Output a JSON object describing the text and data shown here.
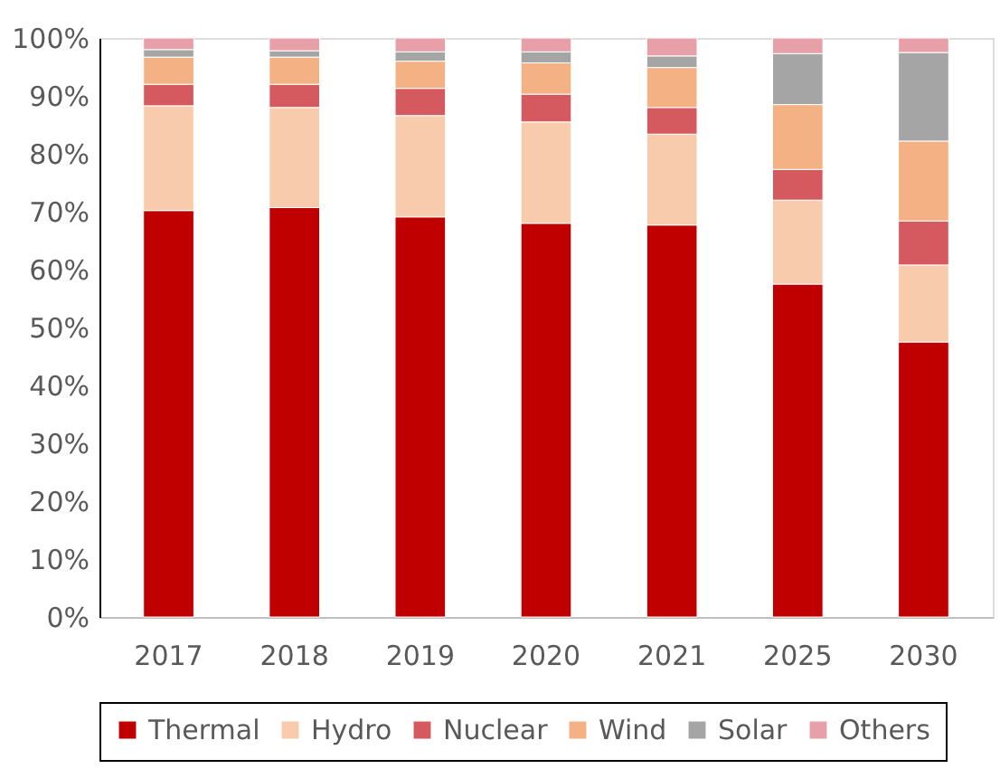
{
  "chart_data": {
    "type": "bar",
    "stacked": true,
    "categories": [
      "2017",
      "2018",
      "2019",
      "2020",
      "2021",
      "2025",
      "2030"
    ],
    "series": [
      {
        "name": "Thermal",
        "color": "#c00000",
        "values": [
          70.2,
          70.7,
          69.1,
          68.0,
          67.7,
          57.5,
          47.5
        ]
      },
      {
        "name": "Hydro",
        "color": "#f8cbad",
        "values": [
          18.1,
          17.3,
          17.5,
          17.5,
          15.7,
          14.5,
          13.3
        ]
      },
      {
        "name": "Nuclear",
        "color": "#d45a5f",
        "values": [
          3.7,
          4.0,
          4.7,
          4.8,
          4.6,
          5.3,
          7.6
        ]
      },
      {
        "name": "Wind",
        "color": "#f4b183",
        "values": [
          4.7,
          4.7,
          4.7,
          5.4,
          6.9,
          11.2,
          13.8
        ]
      },
      {
        "name": "Solar",
        "color": "#a5a5a5",
        "values": [
          1.3,
          1.1,
          1.6,
          1.9,
          2.0,
          8.8,
          15.3
        ]
      },
      {
        "name": "Others",
        "color": "#e8a0a8",
        "values": [
          2.0,
          2.2,
          2.4,
          2.4,
          3.1,
          2.7,
          2.5
        ]
      }
    ],
    "ylim": [
      0,
      100
    ],
    "yticks": [
      {
        "value": 0,
        "label": "0%"
      },
      {
        "value": 10,
        "label": "10%"
      },
      {
        "value": 20,
        "label": "20%"
      },
      {
        "value": 30,
        "label": "30%"
      },
      {
        "value": 40,
        "label": "40%"
      },
      {
        "value": 50,
        "label": "50%"
      },
      {
        "value": 60,
        "label": "60%"
      },
      {
        "value": 70,
        "label": "70%"
      },
      {
        "value": 80,
        "label": "80%"
      },
      {
        "value": 90,
        "label": "90%"
      },
      {
        "value": 100,
        "label": "100%"
      }
    ],
    "grid": false,
    "legend": "bottom"
  }
}
